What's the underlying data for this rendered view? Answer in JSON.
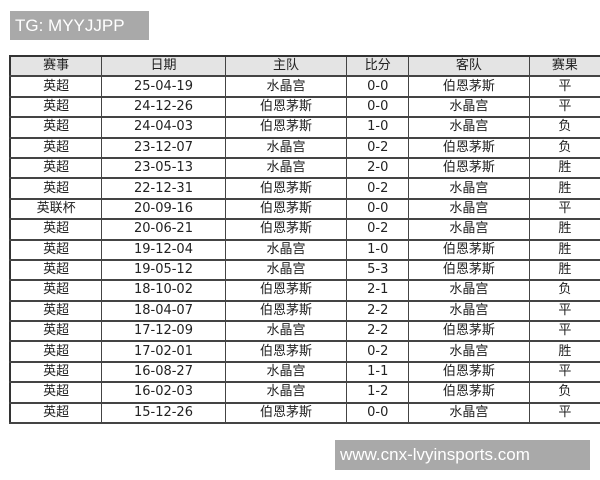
{
  "top_label": "TG: MYYJJPP",
  "bottom_label": "www.cnx-lvyinsports.com",
  "table": {
    "headers": [
      "赛事",
      "日期",
      "主队",
      "比分",
      "客队",
      "赛果"
    ],
    "rows": [
      [
        "英超",
        "25-04-19",
        "水晶宫",
        "0-0",
        "伯恩茅斯",
        "平"
      ],
      [
        "英超",
        "24-12-26",
        "伯恩茅斯",
        "0-0",
        "水晶宫",
        "平"
      ],
      [
        "英超",
        "24-04-03",
        "伯恩茅斯",
        "1-0",
        "水晶宫",
        "负"
      ],
      [
        "英超",
        "23-12-07",
        "水晶宫",
        "0-2",
        "伯恩茅斯",
        "负"
      ],
      [
        "英超",
        "23-05-13",
        "水晶宫",
        "2-0",
        "伯恩茅斯",
        "胜"
      ],
      [
        "英超",
        "22-12-31",
        "伯恩茅斯",
        "0-2",
        "水晶宫",
        "胜"
      ],
      [
        "英联杯",
        "20-09-16",
        "伯恩茅斯",
        "0-0",
        "水晶宫",
        "平"
      ],
      [
        "英超",
        "20-06-21",
        "伯恩茅斯",
        "0-2",
        "水晶宫",
        "胜"
      ],
      [
        "英超",
        "19-12-04",
        "水晶宫",
        "1-0",
        "伯恩茅斯",
        "胜"
      ],
      [
        "英超",
        "19-05-12",
        "水晶宫",
        "5-3",
        "伯恩茅斯",
        "胜"
      ],
      [
        "英超",
        "18-10-02",
        "伯恩茅斯",
        "2-1",
        "水晶宫",
        "负"
      ],
      [
        "英超",
        "18-04-07",
        "伯恩茅斯",
        "2-2",
        "水晶宫",
        "平"
      ],
      [
        "英超",
        "17-12-09",
        "水晶宫",
        "2-2",
        "伯恩茅斯",
        "平"
      ],
      [
        "英超",
        "17-02-01",
        "伯恩茅斯",
        "0-2",
        "水晶宫",
        "胜"
      ],
      [
        "英超",
        "16-08-27",
        "水晶宫",
        "1-1",
        "伯恩茅斯",
        "平"
      ],
      [
        "英超",
        "16-02-03",
        "水晶宫",
        "1-2",
        "伯恩茅斯",
        "负"
      ],
      [
        "英超",
        "15-12-26",
        "伯恩茅斯",
        "0-0",
        "水晶宫",
        "平"
      ]
    ]
  }
}
